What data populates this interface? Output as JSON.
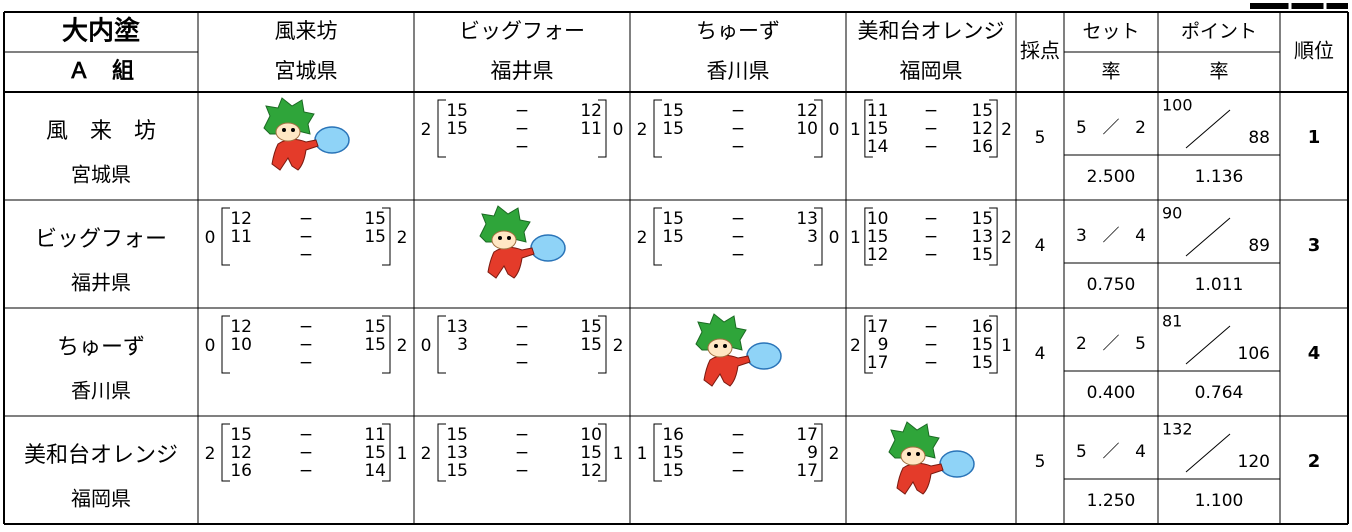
{
  "header": {
    "group": "大内塗",
    "division": "Ａ　組",
    "teams": [
      {
        "name": "風来坊",
        "pref": "宮城県"
      },
      {
        "name": "ビッグフォー",
        "pref": "福井県"
      },
      {
        "name": "ちゅーず",
        "pref": "香川県"
      },
      {
        "name": "美和台オレンジ",
        "pref": "福岡県"
      }
    ],
    "points": "採点",
    "set_ratio": [
      "セット",
      "率"
    ],
    "point_ratio": [
      "ポイント",
      "率"
    ],
    "rank": "順位"
  },
  "score_separator": "−",
  "set_separator": "／",
  "rows": [
    {
      "name": "風　来　坊",
      "pref": "宮城県",
      "matches": [
        null,
        {
          "left": 2,
          "right": 0,
          "games": [
            [
              15,
              12
            ],
            [
              15,
              11
            ]
          ]
        },
        {
          "left": 2,
          "right": 0,
          "games": [
            [
              15,
              12
            ],
            [
              15,
              10
            ]
          ]
        },
        {
          "left": 1,
          "right": 2,
          "games": [
            [
              11,
              15
            ],
            [
              15,
              12
            ],
            [
              14,
              16
            ]
          ]
        }
      ],
      "points": 5,
      "sets_won": 5,
      "sets_lost": 2,
      "set_ratio": "2.500",
      "points_won": 100,
      "points_lost": 88,
      "point_ratio": "1.136",
      "rank": 1
    },
    {
      "name": "ビッグフォー",
      "pref": "福井県",
      "matches": [
        {
          "left": 0,
          "right": 2,
          "games": [
            [
              12,
              15
            ],
            [
              11,
              15
            ]
          ]
        },
        null,
        {
          "left": 2,
          "right": 0,
          "games": [
            [
              15,
              13
            ],
            [
              15,
              3
            ]
          ]
        },
        {
          "left": 1,
          "right": 2,
          "games": [
            [
              10,
              15
            ],
            [
              15,
              13
            ],
            [
              12,
              15
            ]
          ]
        }
      ],
      "points": 4,
      "sets_won": 3,
      "sets_lost": 4,
      "set_ratio": "0.750",
      "points_won": 90,
      "points_lost": 89,
      "point_ratio": "1.011",
      "rank": 3
    },
    {
      "name": "ちゅーず",
      "pref": "香川県",
      "matches": [
        {
          "left": 0,
          "right": 2,
          "games": [
            [
              12,
              15
            ],
            [
              10,
              15
            ]
          ]
        },
        {
          "left": 0,
          "right": 2,
          "games": [
            [
              13,
              15
            ],
            [
              3,
              15
            ]
          ]
        },
        null,
        {
          "left": 2,
          "right": 1,
          "games": [
            [
              17,
              16
            ],
            [
              9,
              15
            ],
            [
              17,
              15
            ]
          ]
        }
      ],
      "points": 4,
      "sets_won": 2,
      "sets_lost": 5,
      "set_ratio": "0.400",
      "points_won": 81,
      "points_lost": 106,
      "point_ratio": "0.764",
      "rank": 4
    },
    {
      "name": "美和台オレンジ",
      "pref": "福岡県",
      "matches": [
        {
          "left": 2,
          "right": 1,
          "games": [
            [
              15,
              11
            ],
            [
              12,
              15
            ],
            [
              16,
              14
            ]
          ]
        },
        {
          "left": 2,
          "right": 1,
          "games": [
            [
              15,
              10
            ],
            [
              13,
              15
            ],
            [
              15,
              12
            ]
          ]
        },
        {
          "left": 1,
          "right": 2,
          "games": [
            [
              16,
              17
            ],
            [
              15,
              9
            ],
            [
              15,
              17
            ]
          ]
        },
        null
      ],
      "points": 5,
      "sets_won": 5,
      "sets_lost": 4,
      "set_ratio": "1.250",
      "points_won": 132,
      "points_lost": 120,
      "point_ratio": "1.100",
      "rank": 2
    }
  ]
}
